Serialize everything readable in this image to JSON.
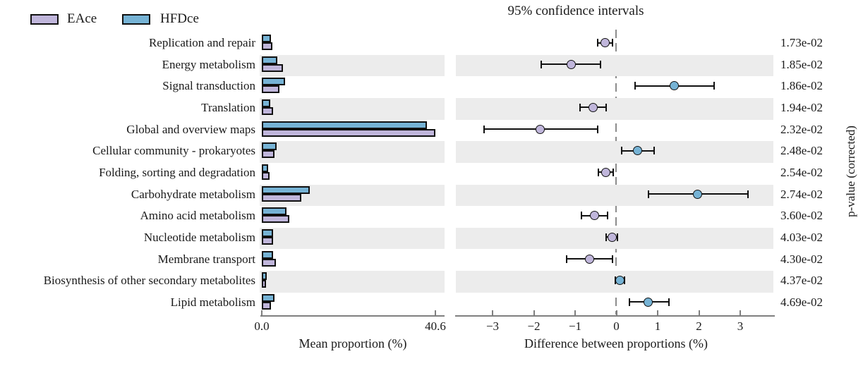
{
  "legend": {
    "items": [
      {
        "label": "EAce",
        "color": "#c0b6db"
      },
      {
        "label": "HFDce",
        "color": "#76b3d5"
      }
    ]
  },
  "left_panel": {
    "xlabel": "Mean proportion (%)"
  },
  "right_panel": {
    "title": "95% confidence intervals",
    "xlabel": "Difference between proportions (%)",
    "ylabel": "p-value (corrected)"
  },
  "chart_data": {
    "type": "bar",
    "subtype": "stamp-extended-error-bar",
    "stripe_color": "#ececec",
    "categories": [
      "Replication and repair",
      "Energy metabolism",
      "Signal transduction",
      "Translation",
      "Global and overview maps",
      "Cellular community - prokaryotes",
      "Folding, sorting and degradation",
      "Carbohydrate metabolism",
      "Amino acid metabolism",
      "Nucleotide metabolism",
      "Membrane transport",
      "Biosynthesis of other secondary metabolites",
      "Lipid metabolism"
    ],
    "series": [
      {
        "name": "EAce",
        "color": "#c0b6db",
        "values": [
          2.4,
          4.9,
          4.1,
          2.6,
          40.6,
          2.9,
          1.8,
          9.2,
          6.4,
          2.7,
          3.3,
          1.0,
          2.1
        ]
      },
      {
        "name": "HFDce",
        "color": "#76b3d5",
        "values": [
          2.1,
          3.7,
          5.5,
          2.0,
          38.7,
          3.4,
          1.5,
          11.2,
          5.8,
          2.6,
          2.7,
          1.1,
          2.9
        ]
      }
    ],
    "left_axis": {
      "xlabel": "Mean proportion (%)",
      "xlim": [
        0,
        43.4
      ],
      "tick_values": [
        0,
        40.6
      ],
      "tick_labels": [
        "0.0",
        "40.6"
      ]
    },
    "difference": {
      "title": "95% confidence intervals",
      "xlabel": "Difference between proportions (%)",
      "means": [
        -0.28,
        -1.1,
        1.4,
        -0.56,
        -1.85,
        0.51,
        -0.26,
        1.97,
        -0.53,
        -0.11,
        -0.65,
        0.09,
        0.77
      ],
      "ci_low": [
        -0.45,
        -1.82,
        0.46,
        -0.88,
        -3.21,
        0.12,
        -0.43,
        0.77,
        -0.85,
        -0.25,
        -1.2,
        -0.02,
        0.32
      ],
      "ci_high": [
        -0.1,
        -0.39,
        2.37,
        -0.24,
        -0.45,
        0.92,
        -0.08,
        3.18,
        -0.22,
        0.02,
        -0.09,
        0.2,
        1.27
      ],
      "dot_series": [
        "EAce",
        "EAce",
        "HFDce",
        "EAce",
        "EAce",
        "HFDce",
        "EAce",
        "HFDce",
        "EAce",
        "EAce",
        "EAce",
        "HFDce",
        "HFDce"
      ],
      "zero_line": true
    },
    "right_axis": {
      "xlim": [
        -3.9,
        3.85
      ],
      "tick_values": [
        -3,
        -2,
        -1,
        0,
        1,
        2,
        3
      ],
      "tick_labels": [
        "−3",
        "−2",
        "−1",
        "0",
        "1",
        "2",
        "3"
      ]
    },
    "p_values": {
      "label": "p-value (corrected)",
      "values": [
        "1.73e-02",
        "1.85e-02",
        "1.86e-02",
        "1.94e-02",
        "2.32e-02",
        "2.48e-02",
        "2.54e-02",
        "2.74e-02",
        "3.60e-02",
        "4.03e-02",
        "4.30e-02",
        "4.37e-02",
        "4.69e-02"
      ]
    }
  }
}
